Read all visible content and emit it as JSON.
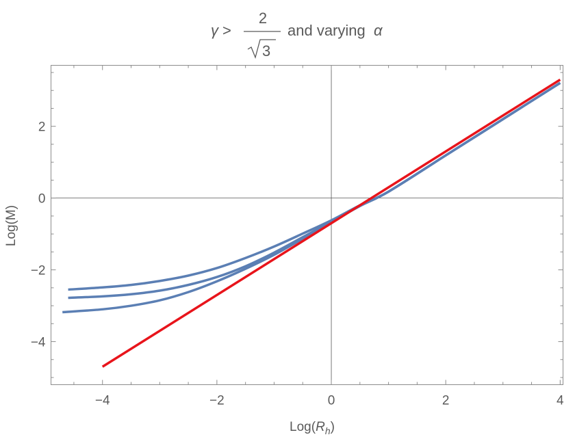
{
  "chart_data": {
    "type": "line",
    "title": {
      "gamma_symbol": "γ",
      "gt": ">",
      "numerator": "2",
      "radicand": "3",
      "suffix": "and varying",
      "alpha_symbol": "α"
    },
    "xlabel": {
      "prefix": "Log(",
      "var": "R",
      "sub": "h",
      "suffix": ")"
    },
    "ylabel": "Log(M)",
    "xlim": [
      -4.9,
      4.05
    ],
    "ylim": [
      -5.2,
      3.7
    ],
    "x_ticks": [
      {
        "value": -4,
        "label": "−4"
      },
      {
        "value": -2,
        "label": "−2"
      },
      {
        "value": 0,
        "label": "0"
      },
      {
        "value": 2,
        "label": "2"
      },
      {
        "value": 4,
        "label": "4"
      }
    ],
    "y_ticks": [
      {
        "value": -4,
        "label": "−4"
      },
      {
        "value": -2,
        "label": "−2"
      },
      {
        "value": 0,
        "label": "0"
      },
      {
        "value": 2,
        "label": "2"
      }
    ],
    "series": [
      {
        "color": "#5b7fb4",
        "x": [
          -4.6,
          -4.0,
          -3.5,
          -3.0,
          -2.5,
          -2.0,
          -1.5,
          -1.0,
          -0.5,
          0.0,
          0.5,
          1.0,
          2.0,
          3.0,
          4.0
        ],
        "y": [
          -2.55,
          -2.49,
          -2.42,
          -2.31,
          -2.16,
          -1.95,
          -1.67,
          -1.35,
          -0.99,
          -0.62,
          -0.2,
          0.18,
          1.19,
          2.2,
          3.21
        ]
      },
      {
        "color": "#5b7fb4",
        "x": [
          -4.6,
          -4.0,
          -3.5,
          -3.0,
          -2.5,
          -2.0,
          -1.5,
          -1.0,
          -0.5,
          0.0,
          0.5,
          1.0,
          2.0,
          3.0,
          4.0
        ],
        "y": [
          -2.78,
          -2.74,
          -2.68,
          -2.58,
          -2.42,
          -2.2,
          -1.9,
          -1.52,
          -1.09,
          -0.66,
          -0.22,
          0.18,
          1.19,
          2.2,
          3.21
        ]
      },
      {
        "color": "#5b7fb4",
        "x": [
          -4.7,
          -4.0,
          -3.5,
          -3.0,
          -2.5,
          -2.0,
          -1.5,
          -1.0,
          -0.5,
          0.0,
          0.5,
          1.0,
          2.0,
          3.0,
          4.0
        ],
        "y": [
          -3.18,
          -3.1,
          -3.0,
          -2.85,
          -2.62,
          -2.32,
          -1.97,
          -1.58,
          -1.13,
          -0.67,
          -0.22,
          0.18,
          1.19,
          2.2,
          3.21
        ]
      },
      {
        "color": "#e8141b",
        "x": [
          -4.0,
          4.0
        ],
        "y": [
          -4.7,
          3.3
        ]
      }
    ]
  }
}
